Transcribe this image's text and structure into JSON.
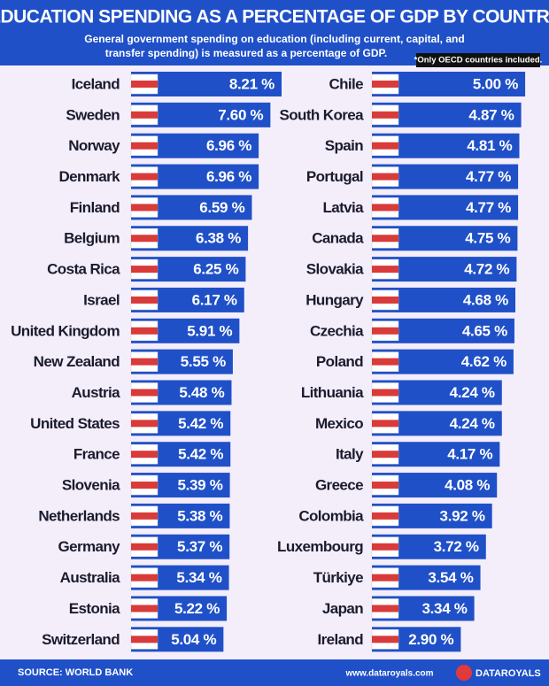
{
  "header": {
    "title": "EDUCATION SPENDING AS A PERCENTAGE OF GDP BY COUNTRY",
    "subtitle": [
      "General government spending on education (including current, capital, and",
      "transfer spending) is measured as a percentage of GDP."
    ],
    "note": "*Only OECD countries included."
  },
  "footer": {
    "source": "SOURCE: WORLD BANK",
    "url": "www.dataroyals.com",
    "brand": "DATAROYALS"
  },
  "chart_data": [
    {
      "type": "bar",
      "orientation": "horizontal",
      "color": "#1f50c8",
      "xlim": [
        0,
        8.5
      ],
      "categories": [
        "Iceland",
        "Sweden",
        "Norway",
        "Denmark",
        "Finland",
        "Belgium",
        "Costa Rica",
        "Israel",
        "United Kingdom",
        "New Zealand",
        "Austria",
        "United States",
        "France",
        "Slovenia",
        "Netherlands",
        "Germany",
        "Australia",
        "Estonia",
        "Switzerland"
      ],
      "values": [
        8.21,
        7.6,
        6.96,
        6.96,
        6.59,
        6.38,
        6.25,
        6.17,
        5.91,
        5.55,
        5.48,
        5.42,
        5.42,
        5.39,
        5.38,
        5.37,
        5.34,
        5.22,
        5.04
      ],
      "value_labels": [
        "8.21 %",
        "7.60 %",
        "6.96 %",
        "6.96 %",
        "6.59 %",
        "6.38 %",
        "6.25 %",
        "6.17 %",
        "5.91 %",
        "5.55 %",
        "5.48 %",
        "5.42 %",
        "5.42 %",
        "5.39 %",
        "5.38 %",
        "5.37 %",
        "5.34 %",
        "5.22 %",
        "5.04 %"
      ]
    },
    {
      "type": "bar",
      "orientation": "horizontal",
      "color": "#1f50c8",
      "xlim": [
        0,
        5.2
      ],
      "categories": [
        "Chile",
        "South Korea",
        "Spain",
        "Portugal",
        "Latvia",
        "Canada",
        "Slovakia",
        "Hungary",
        "Czechia",
        "Poland",
        "Lithuania",
        "Mexico",
        "Italy",
        "Greece",
        "Colombia",
        "Luxembourg",
        "Türkiye",
        "Japan",
        "Ireland"
      ],
      "values": [
        5.0,
        4.87,
        4.81,
        4.77,
        4.77,
        4.75,
        4.72,
        4.68,
        4.65,
        4.62,
        4.24,
        4.24,
        4.17,
        4.08,
        3.92,
        3.72,
        3.54,
        3.34,
        2.9
      ],
      "value_labels": [
        "5.00 %",
        "4.87 %",
        "4.81 %",
        "4.77 %",
        "4.77 %",
        "4.75 %",
        "4.72 %",
        "4.68 %",
        "4.65 %",
        "4.62 %",
        "4.24 %",
        "4.24 %",
        "4.17 %",
        "4.08 %",
        "3.92 %",
        "3.72 %",
        "3.54 %",
        "3.34 %",
        "2.90 %"
      ]
    }
  ]
}
